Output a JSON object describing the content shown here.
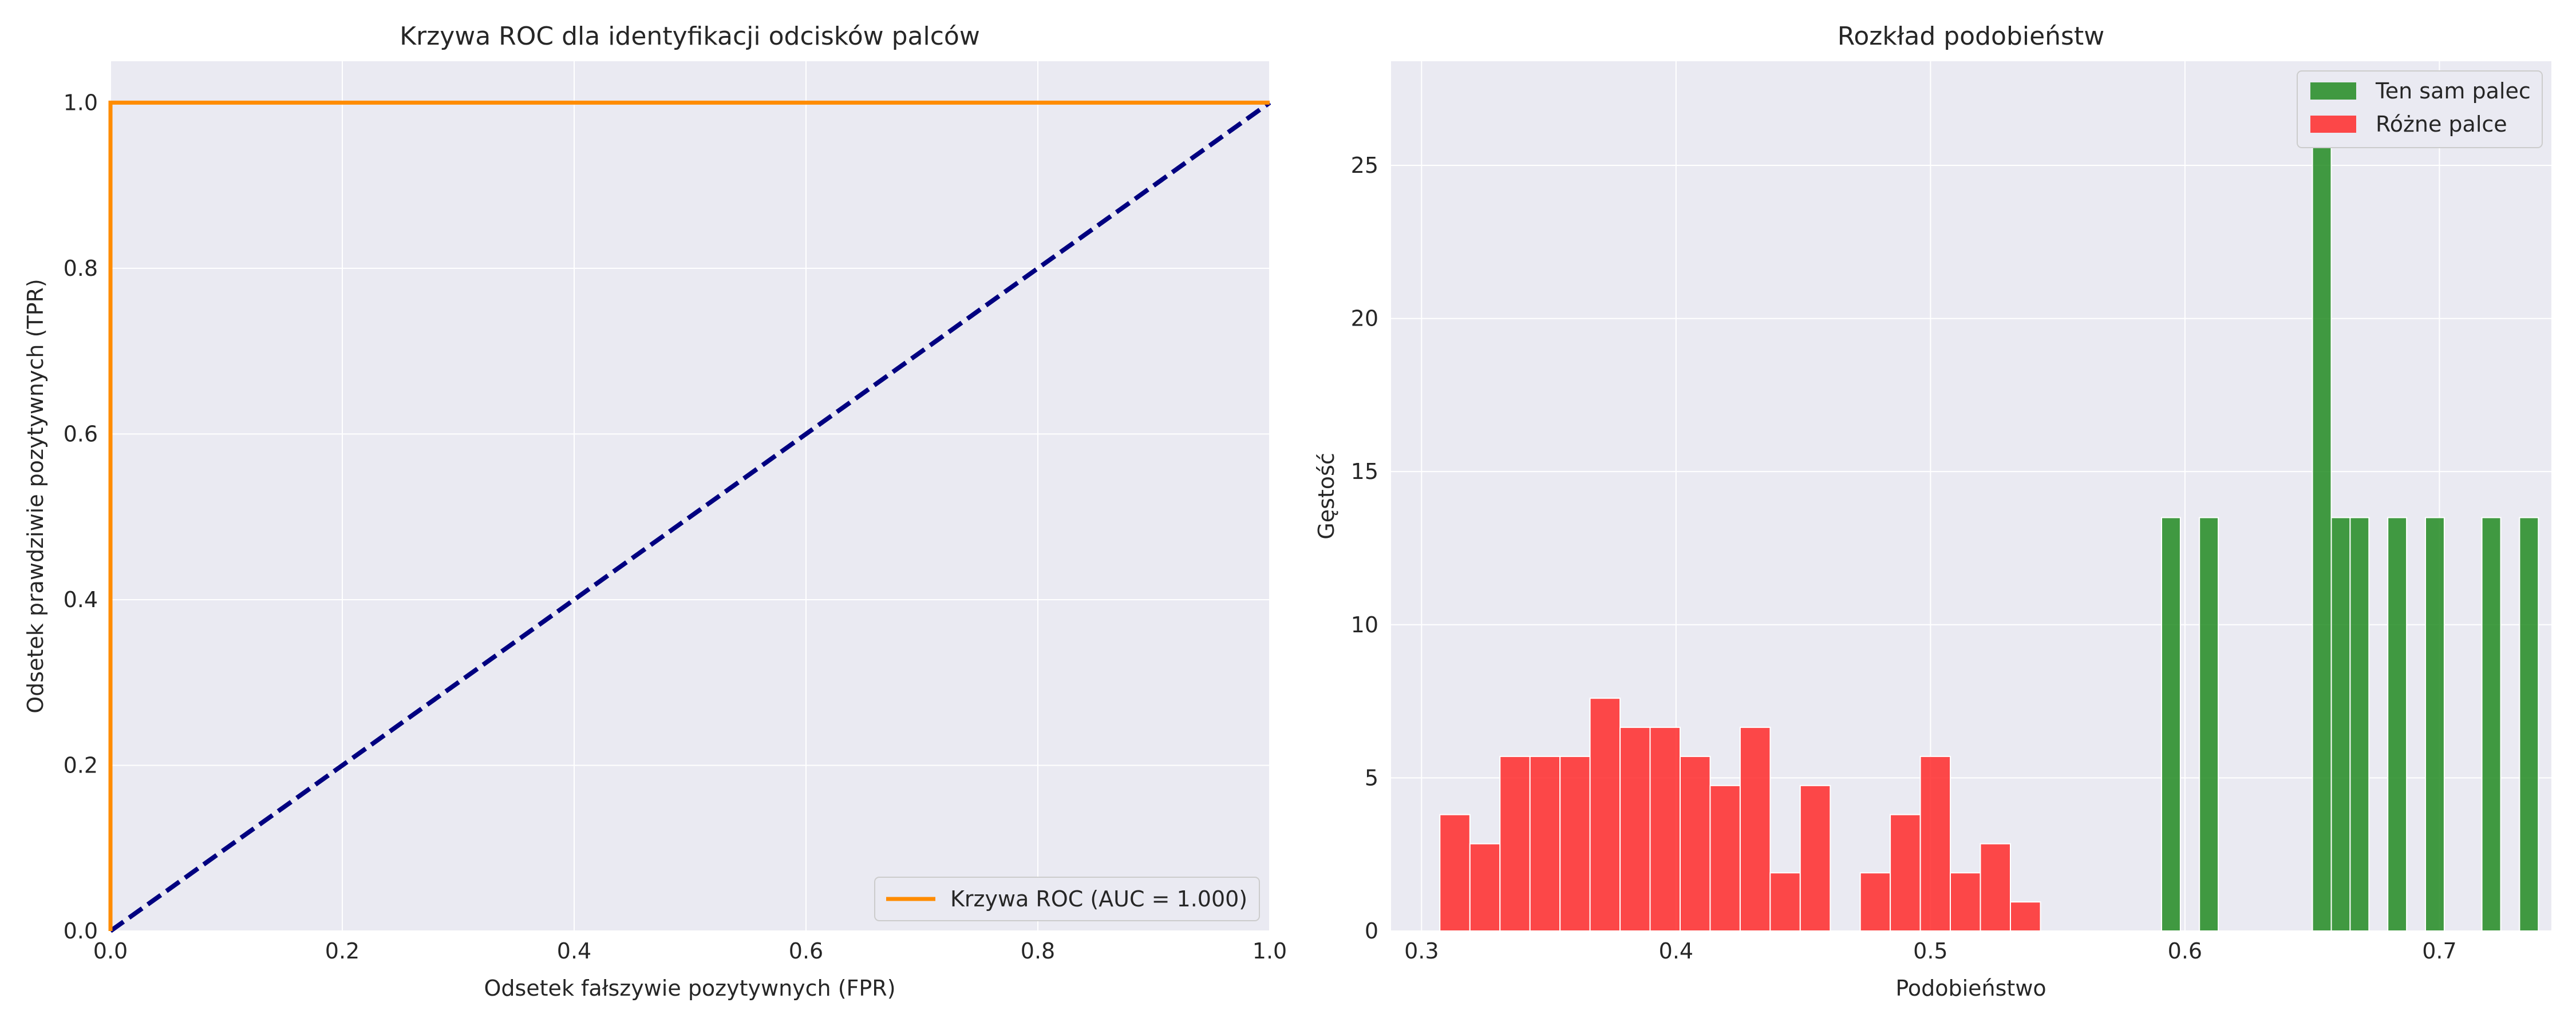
{
  "chart_data": [
    {
      "type": "line",
      "title": "Krzywa ROC dla identyfikacji odcisków palców",
      "xlabel": "Odsetek fałszywie pozytywnych (FPR)",
      "ylabel": "Odsetek prawdziwie pozytywnych (TPR)",
      "xlim": [
        0.0,
        1.0
      ],
      "ylim": [
        0.0,
        1.05
      ],
      "xticks": [
        "0.0",
        "0.2",
        "0.4",
        "0.6",
        "0.8",
        "1.0"
      ],
      "yticks": [
        "0.0",
        "0.2",
        "0.4",
        "0.6",
        "0.8",
        "1.0"
      ],
      "grid": true,
      "legend_position": "bottom-right",
      "series": [
        {
          "name": "Krzywa ROC (AUC = 1.000)",
          "color": "#ff8c00",
          "style": "solid",
          "x": [
            0.0,
            0.0,
            1.0
          ],
          "y": [
            0.0,
            1.0,
            1.0
          ]
        },
        {
          "color": "#000080",
          "style": "dashed",
          "x": [
            0.0,
            1.0
          ],
          "y": [
            0.0,
            1.0
          ]
        }
      ]
    },
    {
      "type": "bar",
      "title": "Rozkład podobieństw",
      "xlabel": "Podobieństwo",
      "ylabel": "Gęstość",
      "xlim": [
        0.288,
        0.744
      ],
      "ylim": [
        0,
        28.4
      ],
      "xticks": [
        "0.3",
        "0.4",
        "0.5",
        "0.6",
        "0.7"
      ],
      "yticks": [
        "0",
        "5",
        "10",
        "15",
        "20",
        "25"
      ],
      "grid": true,
      "legend_position": "top-right",
      "series": [
        {
          "name": "Ten sam palec",
          "color": "#228b22",
          "bar_width": 0.0074,
          "x": [
            0.5945,
            0.6094,
            0.6538,
            0.6612,
            0.6686,
            0.6834,
            0.6982,
            0.7204,
            0.7352
          ],
          "values": [
            13.5,
            13.5,
            27.1,
            13.5,
            13.5,
            13.5,
            13.5,
            13.5,
            13.5
          ]
        },
        {
          "name": "Różne palce",
          "color": "#ff2a2a",
          "bar_width": 0.0118,
          "x": [
            0.3131,
            0.3249,
            0.3367,
            0.3485,
            0.3603,
            0.3721,
            0.3839,
            0.3957,
            0.4075,
            0.4193,
            0.4311,
            0.4429,
            0.4547,
            0.4783,
            0.4901,
            0.5019,
            0.5137,
            0.5255,
            0.5373
          ],
          "values": [
            3.8,
            2.85,
            5.7,
            5.7,
            5.7,
            7.6,
            6.65,
            6.65,
            5.7,
            4.75,
            6.65,
            1.9,
            4.75,
            1.9,
            3.8,
            5.7,
            1.9,
            2.85,
            0.95
          ]
        }
      ]
    }
  ]
}
